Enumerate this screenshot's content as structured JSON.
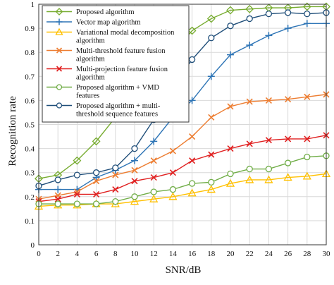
{
  "chart_data": {
    "type": "line",
    "title": "",
    "xlabel": "SNR/dB",
    "ylabel": "Recognition rate",
    "xlim": [
      0,
      30
    ],
    "ylim": [
      0,
      1
    ],
    "x": [
      0,
      2,
      4,
      6,
      8,
      10,
      12,
      14,
      16,
      18,
      20,
      22,
      24,
      26,
      28,
      30
    ],
    "x_ticks": [
      "0",
      "2",
      "4",
      "6",
      "8",
      "10",
      "12",
      "14",
      "16",
      "18",
      "20",
      "22",
      "24",
      "26",
      "28",
      "30"
    ],
    "y_ticks": [
      "0",
      "0.1",
      "0.2",
      "0.3",
      "0.4",
      "0.5",
      "0.6",
      "0.7",
      "0.8",
      "0.9",
      "1"
    ],
    "grid": true,
    "legend_position": "top-left",
    "series": [
      {
        "name": "Proposed algorithm",
        "legend_lines": [
          "Proposed algorithm"
        ],
        "color": "#77ac30",
        "marker": "diamond",
        "values": [
          0.275,
          0.29,
          0.35,
          0.43,
          0.53,
          0.62,
          0.72,
          0.8,
          0.89,
          0.94,
          0.975,
          0.98,
          0.985,
          0.985,
          0.99,
          0.99
        ]
      },
      {
        "name": "Vector map algorithm",
        "legend_lines": [
          "Vector map algorithm"
        ],
        "color": "#2e75b6",
        "marker": "plus",
        "values": [
          0.23,
          0.23,
          0.23,
          0.28,
          0.31,
          0.35,
          0.43,
          0.53,
          0.6,
          0.7,
          0.79,
          0.83,
          0.87,
          0.9,
          0.92,
          0.92
        ]
      },
      {
        "name": "Variational modal decomposition algorithm",
        "legend_lines": [
          "Variational modal decomposition",
          "algorithm"
        ],
        "color": "#ffc000",
        "marker": "triangle",
        "values": [
          0.16,
          0.165,
          0.165,
          0.17,
          0.17,
          0.18,
          0.19,
          0.2,
          0.215,
          0.23,
          0.255,
          0.27,
          0.27,
          0.28,
          0.285,
          0.295
        ]
      },
      {
        "name": "Multi-threshold feature fusion algorithm",
        "legend_lines": [
          "Multi-threshold feature fusion",
          "algorithm"
        ],
        "color": "#ed7d31",
        "marker": "x",
        "values": [
          0.19,
          0.205,
          0.22,
          0.265,
          0.29,
          0.31,
          0.35,
          0.39,
          0.45,
          0.53,
          0.575,
          0.595,
          0.6,
          0.605,
          0.615,
          0.625
        ]
      },
      {
        "name": "Multi-projection feature fusion algorithm",
        "legend_lines": [
          "Multi-projection feature fusion",
          "algorithm"
        ],
        "color": "#e02020",
        "marker": "x",
        "values": [
          0.18,
          0.19,
          0.21,
          0.21,
          0.23,
          0.265,
          0.28,
          0.3,
          0.35,
          0.375,
          0.4,
          0.42,
          0.435,
          0.44,
          0.44,
          0.455
        ]
      },
      {
        "name": "Proposed algorithm + VMD features",
        "legend_lines": [
          "Proposed algorithm + VMD",
          "features"
        ],
        "color": "#70ad47",
        "marker": "circle",
        "values": [
          0.17,
          0.17,
          0.17,
          0.17,
          0.18,
          0.2,
          0.22,
          0.23,
          0.255,
          0.26,
          0.295,
          0.315,
          0.315,
          0.34,
          0.365,
          0.37
        ]
      },
      {
        "name": "Proposed algorithm + multi-threshold sequence features",
        "legend_lines": [
          "Proposed algorithm + multi-",
          "threshold sequence features"
        ],
        "color": "#1f4e79",
        "marker": "circle",
        "values": [
          0.245,
          0.27,
          0.29,
          0.3,
          0.32,
          0.4,
          0.52,
          0.66,
          0.77,
          0.86,
          0.91,
          0.94,
          0.96,
          0.965,
          0.96,
          0.965
        ]
      }
    ]
  }
}
